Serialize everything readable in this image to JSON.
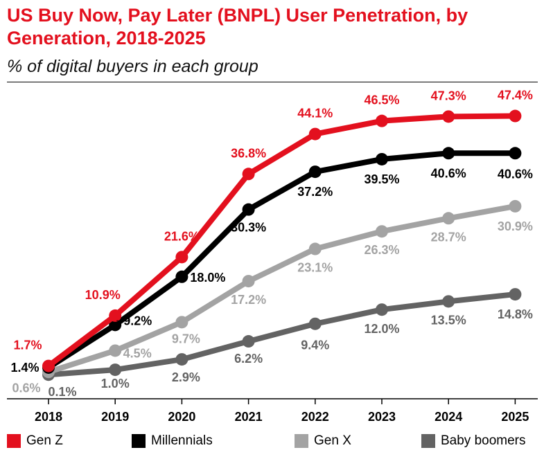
{
  "title": "US Buy Now, Pay Later (BNPL) User Penetration, by Generation, 2018-2025",
  "subtitle": "% of digital buyers in each group",
  "chart_data": {
    "type": "line",
    "title": "US Buy Now, Pay Later (BNPL) User Penetration, by Generation, 2018-2025",
    "subtitle": "% of digital buyers in each group",
    "categories": [
      "2018",
      "2019",
      "2020",
      "2021",
      "2022",
      "2023",
      "2024",
      "2025"
    ],
    "ylim": [
      0,
      50
    ],
    "grid": false,
    "legend": "bottom",
    "series": [
      {
        "name": "Gen Z",
        "color": "#e3101e",
        "values": [
          1.7,
          10.9,
          21.6,
          36.8,
          44.1,
          46.5,
          47.3,
          47.4
        ],
        "labels": [
          "1.7%",
          "10.9%",
          "21.6%",
          "36.8%",
          "44.1%",
          "46.5%",
          "47.3%",
          "47.4%"
        ]
      },
      {
        "name": "Millennials",
        "color": "#000000",
        "values": [
          1.4,
          9.2,
          18.0,
          30.3,
          37.2,
          39.5,
          40.6,
          40.6
        ],
        "labels": [
          "1.4%",
          "9.2%",
          "18.0%",
          "30.3%",
          "37.2%",
          "39.5%",
          "40.6%",
          "40.6%"
        ]
      },
      {
        "name": "Gen X",
        "color": "#a3a3a3",
        "values": [
          0.6,
          4.5,
          9.7,
          17.2,
          23.1,
          26.3,
          28.7,
          30.9
        ],
        "labels": [
          "0.6%",
          "4.5%",
          "9.7%",
          "17.2%",
          "23.1%",
          "26.3%",
          "28.7%",
          "30.9%"
        ]
      },
      {
        "name": "Baby boomers",
        "color": "#636363",
        "values": [
          0.1,
          1.0,
          2.9,
          6.2,
          9.4,
          12.0,
          13.5,
          14.8
        ],
        "labels": [
          "0.1%",
          "1.0%",
          "2.9%",
          "6.2%",
          "9.4%",
          "12.0%",
          "13.5%",
          "14.8%"
        ]
      }
    ]
  }
}
